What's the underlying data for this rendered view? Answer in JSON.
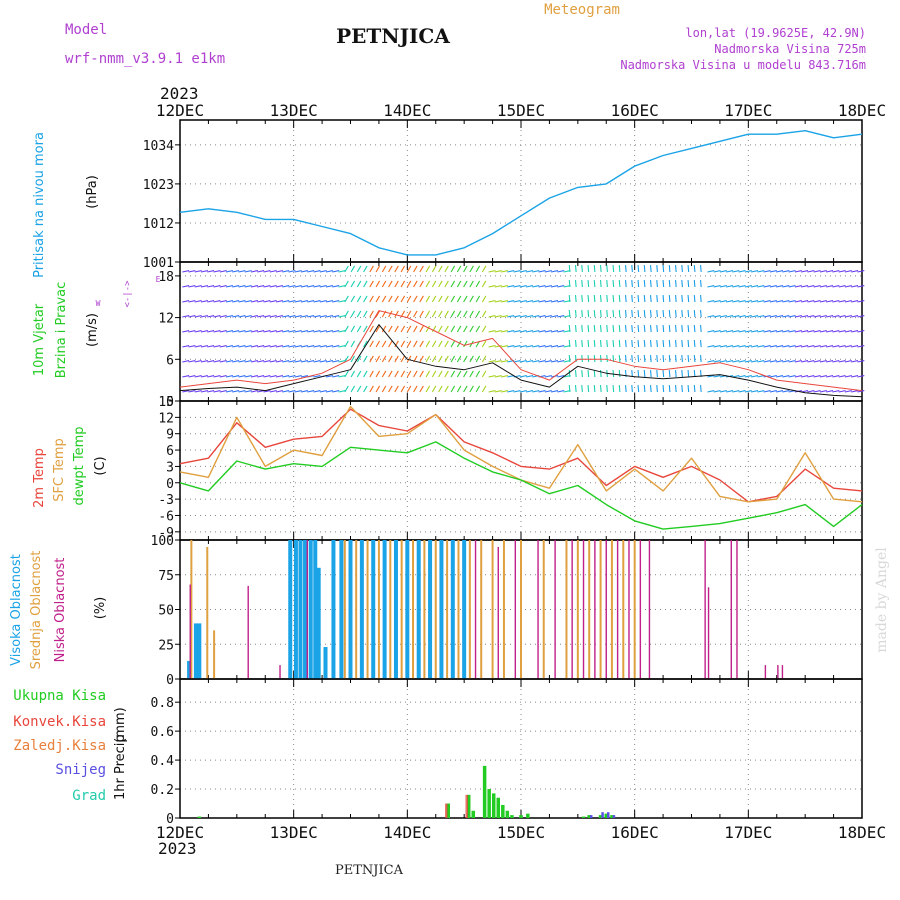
{
  "header": {
    "model_label": "Model",
    "model_name": "wrf-nmm_v3.9.1  e1km",
    "station": "PETNJICA",
    "product": "Meteogram",
    "lonlat": "lon,lat (19.9625E, 42.9N)",
    "altitude": "Nadmorska Visina 725m",
    "model_altitude": "Nadmorska Visina u modelu 843.716m",
    "footer_station": "PETNJICA",
    "credit": "made by Angel"
  },
  "time_axis": {
    "year": "2023",
    "labels": [
      "12DEC",
      "13DEC",
      "14DEC",
      "15DEC",
      "16DEC",
      "17DEC",
      "18DEC"
    ]
  },
  "colors": {
    "pressure": "#1aa3e6",
    "t2m": "#e8463c",
    "sfc_temp": "#e0a040",
    "dewpoint": "#22cc22",
    "high_cloud": "#1aa3e6",
    "mid_cloud": "#e0a040",
    "low_cloud": "#c0208a",
    "precip_total": "#22cc22",
    "precip_conv": "#e8463c",
    "precip_frz": "#e8803c",
    "snow": "#5a50e0",
    "graupel": "#22ccaa",
    "wind_label": "#22cc22",
    "wind_dir": "#b040d0"
  },
  "chart_data": [
    {
      "type": "line",
      "panel": "pressure",
      "ylabel_a": "Pritisak na nivou mora",
      "ylabel_b": "(hPa)",
      "yticks": [
        "1001",
        "1012",
        "1023",
        "1034"
      ],
      "ylim": [
        1001,
        1041
      ],
      "x_days": [
        0,
        0.25,
        0.5,
        0.75,
        1.0,
        1.25,
        1.5,
        1.75,
        2.0,
        2.25,
        2.5,
        2.75,
        3.0,
        3.25,
        3.5,
        3.75,
        4.0,
        4.25,
        4.5,
        4.75,
        5.0,
        5.25,
        5.5,
        5.75,
        6.0
      ],
      "series": [
        {
          "values": [
            1015,
            1016,
            1015,
            1013,
            1013,
            1011,
            1009,
            1005,
            1003,
            1003,
            1005,
            1009,
            1014,
            1019,
            1022,
            1023,
            1028,
            1031,
            1033,
            1035,
            1037,
            1037,
            1038,
            1036,
            1037
          ]
        }
      ]
    },
    {
      "type": "line",
      "panel": "wind",
      "ylabel_a": "10m Vjetar",
      "ylabel_b": "Brzina i Pravac",
      "units": "(m/s)",
      "direction_legend": [
        "W",
        "<-|->",
        "E"
      ],
      "yticks": [
        "0",
        "6",
        "12",
        "18"
      ],
      "ylim": [
        0,
        20
      ],
      "x_days": [
        0,
        0.25,
        0.5,
        0.75,
        1.0,
        1.25,
        1.5,
        1.75,
        2.0,
        2.25,
        2.5,
        2.75,
        3.0,
        3.25,
        3.5,
        3.75,
        4.0,
        4.25,
        4.5,
        4.75,
        5.0,
        5.25,
        5.5,
        5.75,
        6.0
      ],
      "series": [
        {
          "values": [
            1.5,
            1.8,
            2.0,
            1.5,
            2.5,
            3.5,
            4.5,
            11.0,
            6.0,
            5.0,
            4.5,
            5.5,
            3.0,
            2.0,
            5.0,
            4.0,
            3.5,
            3.2,
            3.5,
            3.8,
            3.0,
            2.0,
            1.2,
            0.8,
            0.6
          ]
        },
        {
          "values": [
            2.0,
            2.5,
            3.0,
            2.5,
            3.0,
            4.0,
            6.0,
            13.0,
            12.0,
            10.0,
            8.0,
            9.0,
            4.5,
            3.0,
            6.0,
            6.0,
            5.0,
            4.5,
            5.0,
            5.5,
            4.5,
            3.0,
            2.5,
            2.0,
            1.5
          ]
        }
      ]
    },
    {
      "type": "line",
      "panel": "temperature",
      "ylabel_a": "2m Temp",
      "ylabel_b": "SFC Temp",
      "ylabel_c": "dewpt Temp",
      "units": "(C)",
      "yticks": [
        "-9",
        "-6",
        "-3",
        "0",
        "3",
        "6",
        "9",
        "12",
        "15"
      ],
      "ylim": [
        -10.5,
        15
      ],
      "x_days": [
        0,
        0.25,
        0.5,
        0.75,
        1.0,
        1.25,
        1.5,
        1.75,
        2.0,
        2.25,
        2.5,
        2.75,
        3.0,
        3.25,
        3.5,
        3.75,
        4.0,
        4.25,
        4.5,
        4.75,
        5.0,
        5.25,
        5.5,
        5.75,
        6.0
      ],
      "series": [
        {
          "name": "2m Temp",
          "values": [
            3.5,
            4.5,
            11.0,
            6.5,
            8.0,
            8.5,
            13.5,
            10.5,
            9.5,
            12.5,
            7.5,
            5.5,
            3.0,
            2.5,
            4.5,
            -0.5,
            3.0,
            1.0,
            3.0,
            0.5,
            -3.5,
            -2.5,
            2.5,
            -1.0,
            -1.5
          ]
        },
        {
          "name": "SFC Temp",
          "values": [
            2.0,
            1.0,
            12.0,
            3.0,
            6.0,
            5.0,
            14.0,
            8.5,
            9.0,
            12.5,
            6.0,
            3.0,
            0.5,
            -1.0,
            7.0,
            -1.5,
            2.5,
            -1.5,
            4.5,
            -2.5,
            -3.5,
            -3.0,
            5.5,
            -3.0,
            -3.5
          ]
        },
        {
          "name": "dewpt Temp",
          "values": [
            0.0,
            -1.5,
            4.0,
            2.5,
            3.5,
            3.0,
            6.5,
            6.0,
            5.5,
            7.5,
            4.5,
            2.0,
            0.5,
            -2.0,
            -0.5,
            -4.0,
            -7.0,
            -8.5,
            -8.0,
            -7.5,
            -6.5,
            -5.5,
            -4.0,
            -8.0,
            -4.0
          ]
        }
      ]
    },
    {
      "type": "bar",
      "panel": "clouds",
      "ylabel_a": "Visoka Oblacnost",
      "ylabel_b": "Srednja Oblacnost",
      "ylabel_c": "Niska Oblacnost",
      "units": "(%)",
      "yticks": [
        "0",
        "25",
        "50",
        "75",
        "100"
      ],
      "ylim": [
        0,
        100
      ],
      "series": [
        {
          "name": "Visoka Oblacnost",
          "x_days": [
            0.08,
            0.14,
            0.17,
            0.97,
            1.02,
            1.06,
            1.1,
            1.15,
            1.19,
            1.22,
            1.28,
            1.35,
            1.42,
            1.5,
            1.6,
            1.7,
            1.8,
            1.9,
            2.0,
            2.1,
            2.2,
            2.3,
            2.4,
            2.5
          ],
          "values": [
            13,
            40,
            40,
            100,
            100,
            100,
            100,
            100,
            100,
            80,
            23,
            100,
            100,
            100,
            100,
            100,
            100,
            100,
            100,
            100,
            100,
            100,
            100,
            100
          ]
        },
        {
          "name": "Srednja Oblacnost",
          "x_days": [
            0.1,
            0.24,
            0.3,
            1.45,
            1.55,
            1.65,
            1.75,
            1.85,
            1.95,
            2.05,
            2.15,
            2.25,
            2.35,
            2.45,
            2.55,
            2.65,
            2.75,
            2.85,
            3.0,
            3.2,
            3.4,
            3.5,
            3.6,
            3.7,
            3.8,
            3.9,
            4.0
          ],
          "values": [
            100,
            95,
            35,
            100,
            100,
            100,
            100,
            100,
            100,
            100,
            100,
            100,
            100,
            100,
            100,
            100,
            100,
            100,
            100,
            100,
            100,
            100,
            100,
            100,
            100,
            100,
            100
          ]
        },
        {
          "name": "Niska Oblacnost",
          "x_days": [
            0.09,
            0.6,
            0.88,
            1.12,
            2.6,
            2.8,
            2.95,
            3.15,
            3.3,
            3.45,
            3.55,
            3.65,
            3.75,
            3.85,
            3.95,
            4.05,
            4.13,
            4.62,
            4.65,
            4.85,
            4.9,
            5.15,
            5.26,
            5.3
          ],
          "values": [
            68,
            67,
            10,
            100,
            100,
            95,
            100,
            100,
            100,
            100,
            100,
            100,
            100,
            100,
            100,
            100,
            100,
            100,
            66,
            100,
            100,
            10,
            10,
            10
          ]
        }
      ]
    },
    {
      "type": "bar",
      "panel": "precip",
      "ylabel_a": "1hr Precip",
      "units": "(mm)",
      "legend": [
        "Ukupna Kisa",
        "Konvek.Kisa",
        "Zaledj.Kisa",
        "Snijeg",
        "Grad"
      ],
      "yticks": [
        "0",
        "0.2",
        "0.4",
        "0.6",
        "0.8"
      ],
      "ylim": [
        0,
        0.96
      ],
      "series": [
        {
          "name": "Ukupna Kisa",
          "x_days": [
            0.17,
            2.36,
            2.54,
            2.58,
            2.68,
            2.72,
            2.76,
            2.8,
            2.84,
            2.88,
            2.92,
            3.0,
            3.06,
            3.55,
            3.6,
            3.7,
            3.75,
            3.8
          ],
          "values": [
            0.01,
            0.1,
            0.16,
            0.05,
            0.36,
            0.2,
            0.17,
            0.14,
            0.09,
            0.05,
            0.02,
            0.02,
            0.03,
            0.01,
            0.02,
            0.02,
            0.03,
            0.02
          ]
        },
        {
          "name": "Konvek.Kisa",
          "x_days": [
            2.36,
            2.54
          ],
          "values": [
            0.1,
            0.16
          ]
        },
        {
          "name": "Snijeg",
          "x_days": [
            3.6,
            3.7,
            3.75,
            3.8
          ],
          "values": [
            0.02,
            0.04,
            0.04,
            0.02
          ]
        }
      ]
    }
  ]
}
